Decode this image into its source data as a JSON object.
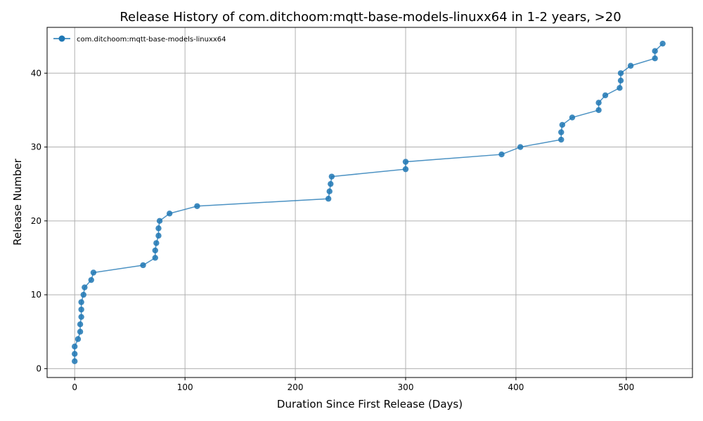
{
  "chart_data": {
    "type": "line",
    "title": "Release History of com.ditchoom:mqtt-base-models-linuxx64 in 1-2 years, >20",
    "xlabel": "Duration Since First Release (Days)",
    "ylabel": "Release Number",
    "xlim": [
      -25,
      560
    ],
    "ylim": [
      -1.2,
      46.2
    ],
    "xticks": [
      0,
      100,
      200,
      300,
      400,
      500
    ],
    "yticks": [
      0,
      10,
      20,
      30,
      40
    ],
    "grid": true,
    "legend": "top-left",
    "colors": {
      "series": "#1f77b4"
    },
    "series": [
      {
        "name": "com.ditchoom:mqtt-base-models-linuxx64",
        "points": [
          [
            0,
            1
          ],
          [
            0,
            2
          ],
          [
            0,
            3
          ],
          [
            3,
            4
          ],
          [
            5,
            5
          ],
          [
            5,
            6
          ],
          [
            6,
            7
          ],
          [
            6,
            8
          ],
          [
            6,
            9
          ],
          [
            8,
            10
          ],
          [
            9,
            11
          ],
          [
            15,
            12
          ],
          [
            17,
            13
          ],
          [
            62,
            14
          ],
          [
            73,
            15
          ],
          [
            73,
            16
          ],
          [
            74,
            17
          ],
          [
            76,
            18
          ],
          [
            76,
            19
          ],
          [
            77,
            20
          ],
          [
            86,
            21
          ],
          [
            111,
            22
          ],
          [
            230,
            23
          ],
          [
            231,
            24
          ],
          [
            232,
            25
          ],
          [
            233,
            26
          ],
          [
            300,
            27
          ],
          [
            300,
            28
          ],
          [
            387,
            29
          ],
          [
            404,
            30
          ],
          [
            441,
            31
          ],
          [
            441,
            32
          ],
          [
            442,
            33
          ],
          [
            451,
            34
          ],
          [
            475,
            35
          ],
          [
            475,
            36
          ],
          [
            481,
            37
          ],
          [
            494,
            38
          ],
          [
            495,
            39
          ],
          [
            495,
            40
          ],
          [
            504,
            41
          ],
          [
            526,
            42
          ],
          [
            526,
            43
          ],
          [
            533,
            44
          ]
        ]
      }
    ]
  }
}
